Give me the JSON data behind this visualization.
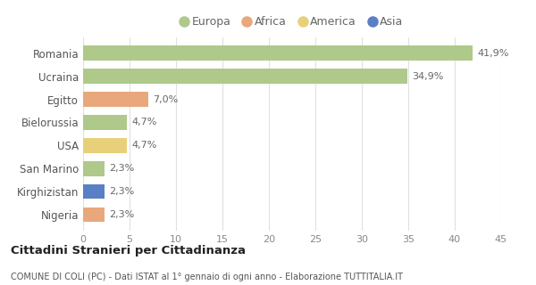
{
  "categories": [
    "Romania",
    "Ucraina",
    "Egitto",
    "Bielorussia",
    "USA",
    "San Marino",
    "Kirghizistan",
    "Nigeria"
  ],
  "values": [
    41.9,
    34.9,
    7.0,
    4.7,
    4.7,
    2.3,
    2.3,
    2.3
  ],
  "labels": [
    "41,9%",
    "34,9%",
    "7,0%",
    "4,7%",
    "4,7%",
    "2,3%",
    "2,3%",
    "2,3%"
  ],
  "colors": [
    "#aec98a",
    "#aec98a",
    "#e8a87c",
    "#aec98a",
    "#e8d07a",
    "#aec98a",
    "#5b7fc4",
    "#e8a87c"
  ],
  "legend_labels": [
    "Europa",
    "Africa",
    "America",
    "Asia"
  ],
  "legend_colors": [
    "#aec98a",
    "#e8a87c",
    "#e8d07a",
    "#5b7fc4"
  ],
  "xlim": [
    0,
    45
  ],
  "xticks": [
    0,
    5,
    10,
    15,
    20,
    25,
    30,
    35,
    40,
    45
  ],
  "title": "Cittadini Stranieri per Cittadinanza",
  "subtitle": "COMUNE DI COLI (PC) - Dati ISTAT al 1° gennaio di ogni anno - Elaborazione TUTTITALIA.IT",
  "background_color": "#ffffff",
  "grid_color": "#e0e0e0",
  "bar_height": 0.65,
  "label_fontsize": 8.0,
  "ytick_fontsize": 8.5,
  "xtick_fontsize": 8.0
}
